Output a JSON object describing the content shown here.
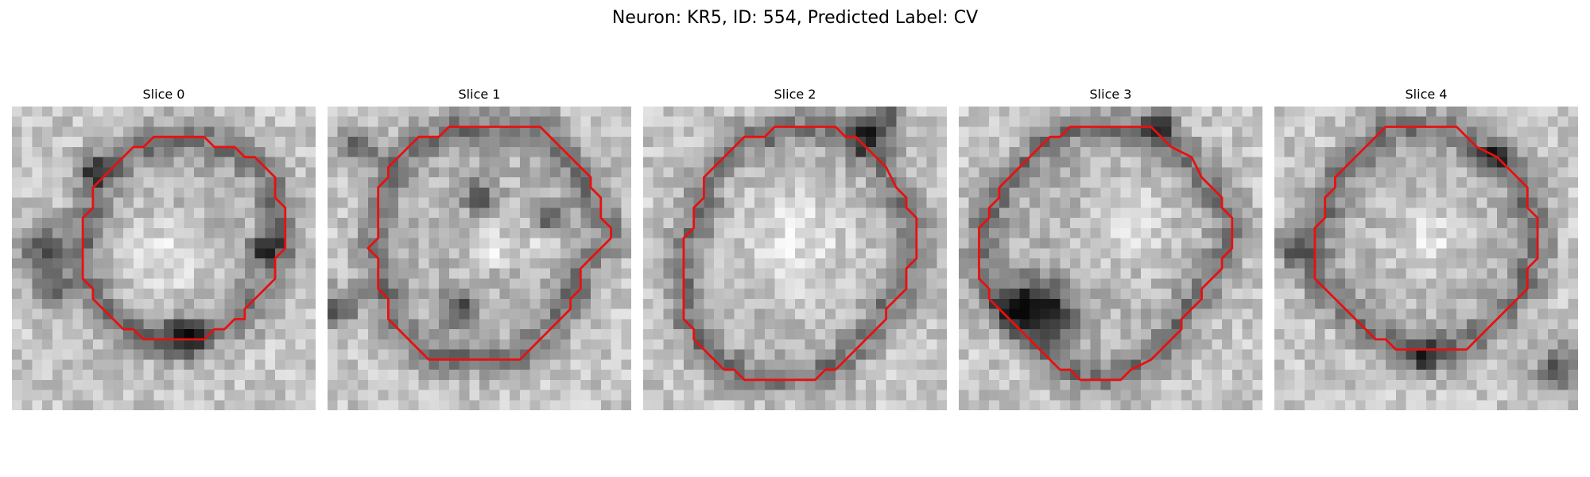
{
  "figure": {
    "title": "Neuron: KR5, ID: 554, Predicted Label: CV"
  },
  "colors": {
    "contour": "#e81010",
    "background": "#ffffff"
  },
  "slices": [
    {
      "label": "Slice 0",
      "contour": [
        [
          14,
          3
        ],
        [
          19,
          3
        ],
        [
          20,
          4
        ],
        [
          22,
          4
        ],
        [
          23,
          5
        ],
        [
          24,
          5
        ],
        [
          26,
          7
        ],
        [
          26,
          9
        ],
        [
          27,
          10
        ],
        [
          27,
          14
        ],
        [
          26,
          15
        ],
        [
          26,
          17
        ],
        [
          25,
          18
        ],
        [
          24,
          19
        ],
        [
          23,
          20
        ],
        [
          23,
          21
        ],
        [
          22,
          21
        ],
        [
          21,
          22
        ],
        [
          20,
          22
        ],
        [
          19,
          23
        ],
        [
          13,
          23
        ],
        [
          12,
          22
        ],
        [
          11,
          22
        ],
        [
          9,
          20
        ],
        [
          8,
          19
        ],
        [
          8,
          18
        ],
        [
          7,
          17
        ],
        [
          7,
          16
        ],
        [
          7,
          15
        ],
        [
          7,
          11
        ],
        [
          8,
          10
        ],
        [
          8,
          8
        ],
        [
          9,
          7
        ],
        [
          10,
          6
        ],
        [
          11,
          5
        ],
        [
          12,
          4
        ],
        [
          13,
          4
        ]
      ],
      "dark_spots": [
        [
          3,
          14,
          2.3
        ],
        [
          8,
          6,
          1.6
        ],
        [
          17,
          23,
          2.0
        ],
        [
          25,
          14,
          1.6
        ],
        [
          4,
          18,
          1.8
        ]
      ],
      "bright_spots": [
        [
          15,
          15,
          4.2
        ]
      ]
    },
    {
      "label": "Slice 1",
      "contour": [
        [
          12,
          2
        ],
        [
          21,
          2
        ],
        [
          22,
          3
        ],
        [
          23,
          4
        ],
        [
          24,
          5
        ],
        [
          25,
          6
        ],
        [
          26,
          7
        ],
        [
          26,
          8
        ],
        [
          27,
          9
        ],
        [
          27,
          11
        ],
        [
          28,
          12
        ],
        [
          28,
          13
        ],
        [
          27,
          14
        ],
        [
          26,
          15
        ],
        [
          25,
          16
        ],
        [
          25,
          18
        ],
        [
          24,
          19
        ],
        [
          24,
          20
        ],
        [
          23,
          21
        ],
        [
          22,
          22
        ],
        [
          21,
          23
        ],
        [
          20,
          24
        ],
        [
          19,
          25
        ],
        [
          10,
          25
        ],
        [
          9,
          24
        ],
        [
          8,
          23
        ],
        [
          7,
          22
        ],
        [
          6,
          21
        ],
        [
          6,
          19
        ],
        [
          5,
          18
        ],
        [
          5,
          15
        ],
        [
          4,
          14
        ],
        [
          5,
          13
        ],
        [
          5,
          8
        ],
        [
          6,
          7
        ],
        [
          6,
          6
        ],
        [
          7,
          5
        ],
        [
          8,
          4
        ],
        [
          9,
          3
        ],
        [
          11,
          3
        ]
      ],
      "dark_spots": [
        [
          3,
          4,
          1.8
        ],
        [
          1,
          20,
          2.0
        ],
        [
          15,
          9,
          1.5
        ],
        [
          13,
          20,
          1.8
        ],
        [
          22,
          11,
          1.4
        ]
      ],
      "bright_spots": [
        [
          21,
          13,
          1.5
        ],
        [
          16,
          14,
          2.0
        ]
      ]
    },
    {
      "label": "Slice 2",
      "contour": [
        [
          13,
          2
        ],
        [
          14,
          2
        ],
        [
          15,
          2
        ],
        [
          19,
          2
        ],
        [
          20,
          3
        ],
        [
          21,
          3
        ],
        [
          22,
          4
        ],
        [
          23,
          5
        ],
        [
          24,
          6
        ],
        [
          25,
          8
        ],
        [
          26,
          9
        ],
        [
          26,
          10
        ],
        [
          27,
          11
        ],
        [
          27,
          15
        ],
        [
          26,
          16
        ],
        [
          26,
          18
        ],
        [
          25,
          19
        ],
        [
          24,
          20
        ],
        [
          24,
          21
        ],
        [
          23,
          22
        ],
        [
          22,
          23
        ],
        [
          21,
          24
        ],
        [
          20,
          25
        ],
        [
          19,
          26
        ],
        [
          18,
          26
        ],
        [
          17,
          27
        ],
        [
          10,
          27
        ],
        [
          9,
          26
        ],
        [
          8,
          26
        ],
        [
          7,
          25
        ],
        [
          6,
          24
        ],
        [
          5,
          23
        ],
        [
          5,
          22
        ],
        [
          4,
          21
        ],
        [
          4,
          13
        ],
        [
          5,
          12
        ],
        [
          5,
          10
        ],
        [
          6,
          9
        ],
        [
          6,
          7
        ],
        [
          7,
          6
        ],
        [
          8,
          5
        ],
        [
          9,
          4
        ],
        [
          10,
          3
        ],
        [
          11,
          3
        ],
        [
          12,
          3
        ]
      ],
      "dark_spots": [
        [
          22,
          3,
          1.8
        ],
        [
          24,
          1,
          1.6
        ]
      ],
      "bright_spots": [
        [
          15,
          13,
          6.0
        ]
      ]
    },
    {
      "label": "Slice 3",
      "contour": [
        [
          11,
          2
        ],
        [
          19,
          2
        ],
        [
          20,
          3
        ],
        [
          21,
          4
        ],
        [
          23,
          5
        ],
        [
          24,
          7
        ],
        [
          25,
          8
        ],
        [
          26,
          9
        ],
        [
          26,
          10
        ],
        [
          27,
          11
        ],
        [
          27,
          14
        ],
        [
          26,
          15
        ],
        [
          26,
          16
        ],
        [
          25,
          17
        ],
        [
          24,
          18
        ],
        [
          24,
          19
        ],
        [
          23,
          20
        ],
        [
          22,
          21
        ],
        [
          22,
          22
        ],
        [
          21,
          23
        ],
        [
          20,
          24
        ],
        [
          19,
          25
        ],
        [
          17,
          26
        ],
        [
          16,
          27
        ],
        [
          12,
          27
        ],
        [
          11,
          26
        ],
        [
          10,
          26
        ],
        [
          9,
          25
        ],
        [
          8,
          24
        ],
        [
          7,
          23
        ],
        [
          6,
          22
        ],
        [
          5,
          21
        ],
        [
          4,
          20
        ],
        [
          3,
          19
        ],
        [
          3,
          18
        ],
        [
          2,
          17
        ],
        [
          2,
          12
        ],
        [
          3,
          11
        ],
        [
          3,
          10
        ],
        [
          4,
          9
        ],
        [
          4,
          8
        ],
        [
          5,
          7
        ],
        [
          6,
          6
        ],
        [
          7,
          5
        ],
        [
          8,
          4
        ],
        [
          9,
          3
        ],
        [
          10,
          3
        ]
      ],
      "dark_spots": [
        [
          8,
          19,
          2.6
        ],
        [
          6,
          20,
          2.0
        ],
        [
          20,
          2,
          1.4
        ],
        [
          10,
          21,
          1.8
        ]
      ],
      "bright_spots": [
        [
          17,
          12,
          4.0
        ]
      ]
    },
    {
      "label": "Slice 4",
      "contour": [
        [
          11,
          2
        ],
        [
          18,
          2
        ],
        [
          19,
          3
        ],
        [
          20,
          4
        ],
        [
          22,
          5
        ],
        [
          23,
          6
        ],
        [
          24,
          7
        ],
        [
          25,
          8
        ],
        [
          25,
          10
        ],
        [
          26,
          11
        ],
        [
          26,
          15
        ],
        [
          25,
          16
        ],
        [
          25,
          18
        ],
        [
          24,
          19
        ],
        [
          23,
          20
        ],
        [
          22,
          21
        ],
        [
          21,
          22
        ],
        [
          20,
          23
        ],
        [
          19,
          24
        ],
        [
          12,
          24
        ],
        [
          11,
          23
        ],
        [
          10,
          23
        ],
        [
          9,
          22
        ],
        [
          8,
          21
        ],
        [
          7,
          20
        ],
        [
          6,
          19
        ],
        [
          5,
          18
        ],
        [
          4,
          17
        ],
        [
          4,
          12
        ],
        [
          5,
          11
        ],
        [
          5,
          9
        ],
        [
          6,
          8
        ],
        [
          6,
          7
        ],
        [
          7,
          6
        ],
        [
          8,
          5
        ],
        [
          9,
          4
        ],
        [
          10,
          3
        ]
      ],
      "dark_spots": [
        [
          28,
          26,
          2.3
        ],
        [
          2,
          14,
          1.8
        ],
        [
          15,
          25,
          1.6
        ],
        [
          22,
          5,
          1.4
        ]
      ],
      "bright_spots": [
        [
          15,
          13,
          3.5
        ]
      ]
    }
  ]
}
